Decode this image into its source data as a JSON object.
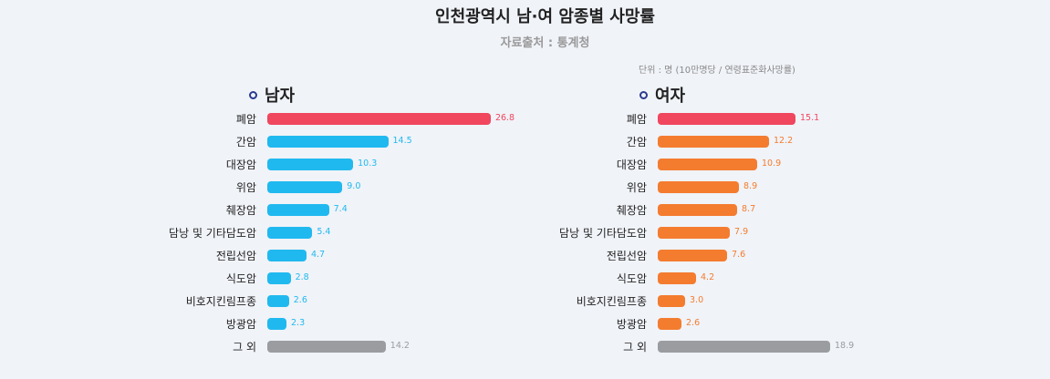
{
  "title": "인천광역시 남·여 암종별 사망률",
  "subtitle": "자료출처 : 통계청",
  "unit": "단위 : 명 (10만명당 / 연령표준화사망률)",
  "chart_data": [
    {
      "type": "bar",
      "orientation": "horizontal",
      "title": "남자",
      "categories": [
        "폐암",
        "간암",
        "대장암",
        "위암",
        "췌장암",
        "담낭 및 기타담도암",
        "전립선암",
        "식도암",
        "비호지킨림프종",
        "방광암",
        "그 외"
      ],
      "values": [
        26.8,
        14.5,
        10.3,
        9.0,
        7.4,
        5.4,
        4.7,
        2.8,
        2.6,
        2.3,
        14.2
      ],
      "labels": [
        "26.8",
        "14.5",
        "10.3",
        "9.0",
        "7.4",
        "5.4",
        "4.7",
        "2.8",
        "2.6",
        "2.3",
        "14.2"
      ],
      "colors": {
        "first": "#f0465e",
        "main": "#20b9ef",
        "other": "#9a9c9f"
      }
    },
    {
      "type": "bar",
      "orientation": "horizontal",
      "title": "여자",
      "categories": [
        "폐암",
        "간암",
        "대장암",
        "위암",
        "췌장암",
        "담낭 및 기타담도암",
        "전립선암",
        "식도암",
        "비호지킨림프종",
        "방광암",
        "그 외"
      ],
      "values": [
        15.1,
        12.2,
        10.9,
        8.9,
        8.7,
        7.9,
        7.6,
        4.2,
        3.0,
        2.6,
        18.9
      ],
      "labels": [
        "15.1",
        "12.2",
        "10.9",
        "8.9",
        "8.7",
        "7.9",
        "7.6",
        "4.2",
        "3.0",
        "2.6",
        "18.9"
      ],
      "colors": {
        "first": "#f0465e",
        "main": "#f47c2f",
        "other": "#9a9c9f"
      }
    }
  ]
}
